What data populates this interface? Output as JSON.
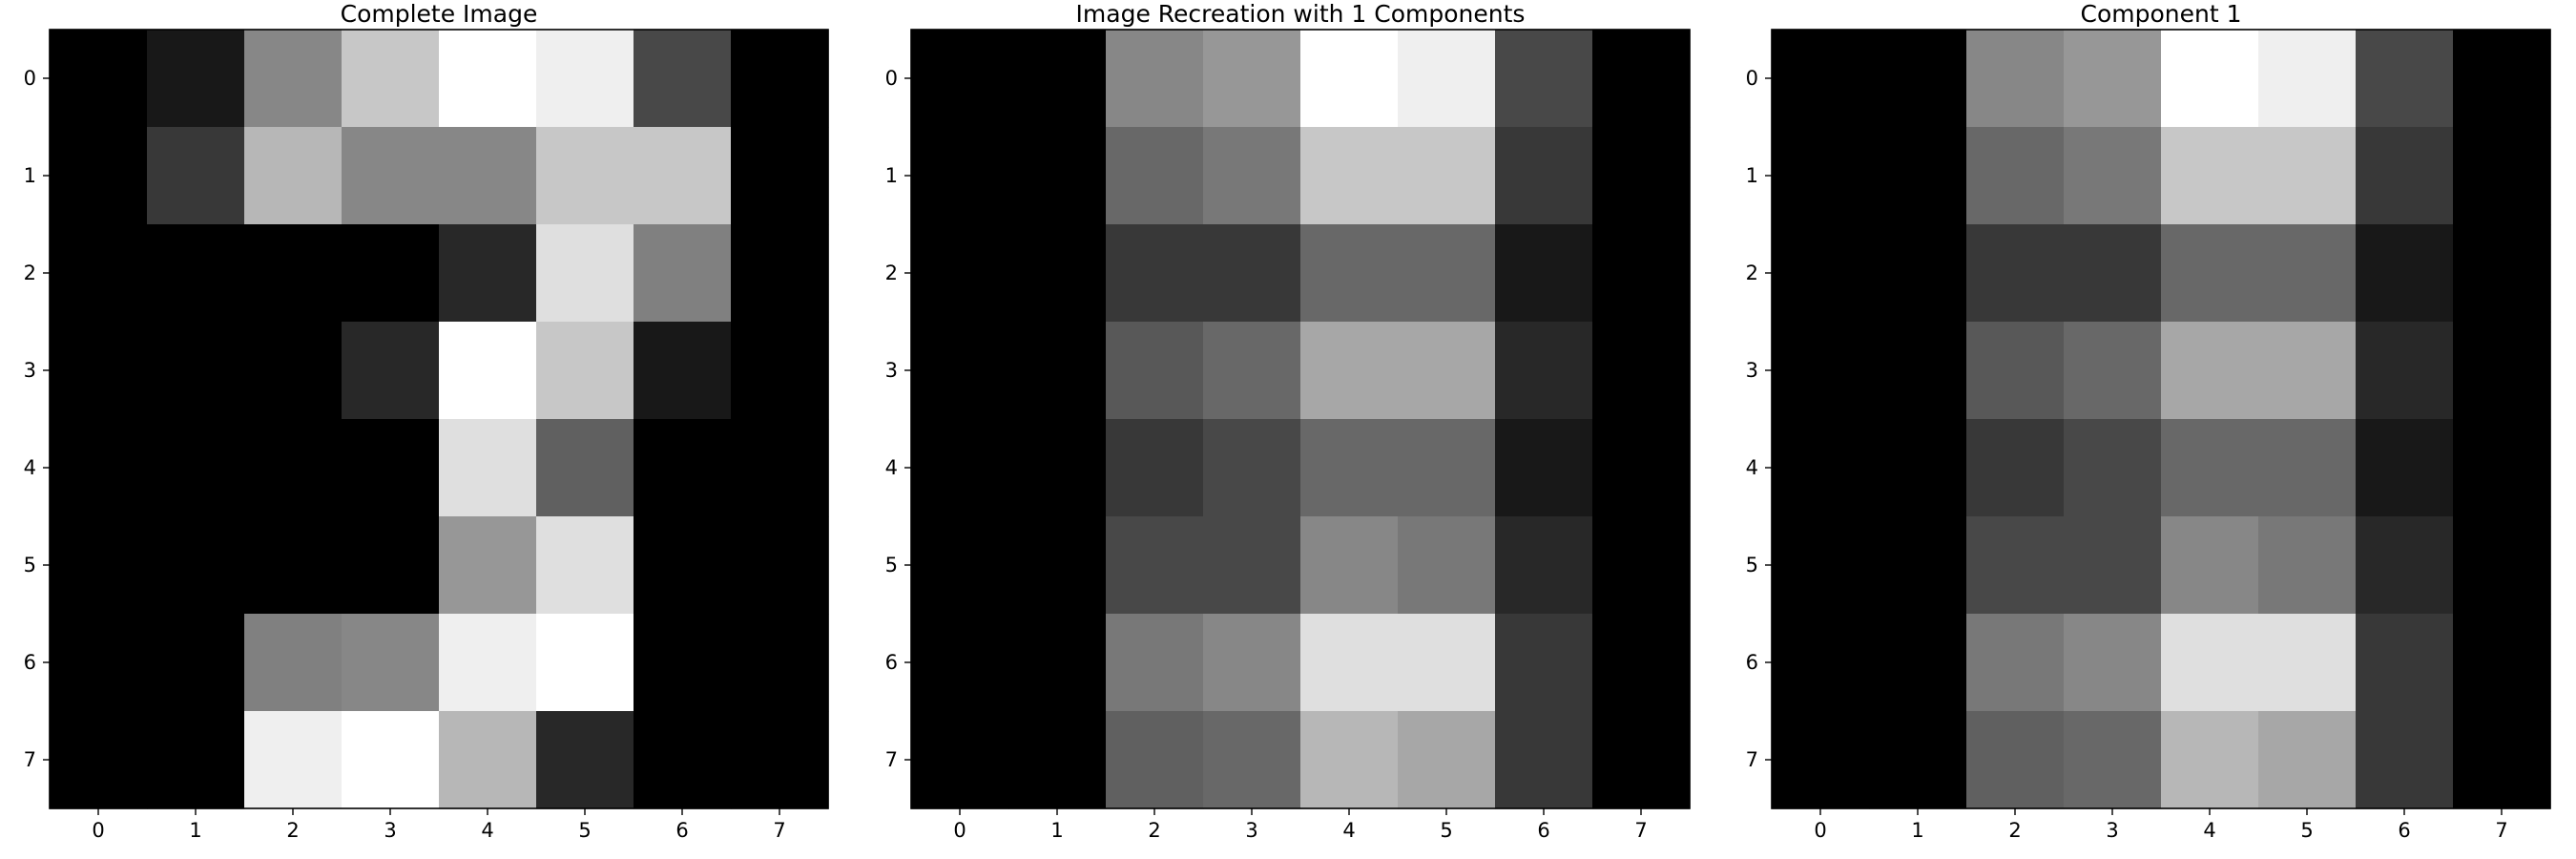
{
  "chart_data": [
    {
      "type": "heatmap",
      "title": "Complete Image",
      "colormap": "gray",
      "x_ticks": [
        "0",
        "1",
        "2",
        "3",
        "4",
        "5",
        "6",
        "7"
      ],
      "y_ticks": [
        "0",
        "1",
        "2",
        "3",
        "4",
        "5",
        "6",
        "7"
      ],
      "value_range": [
        0,
        16
      ],
      "grid": false,
      "values": [
        [
          0,
          1.5,
          8.5,
          12.5,
          16,
          15,
          4.5,
          0
        ],
        [
          0,
          3.5,
          11.5,
          8.5,
          8.5,
          12.5,
          12.5,
          0
        ],
        [
          0,
          0,
          0,
          0,
          2.5,
          14,
          8,
          0
        ],
        [
          0,
          0,
          0,
          2.5,
          16,
          12.5,
          1.5,
          0
        ],
        [
          0,
          0,
          0,
          0,
          14,
          6,
          0,
          0
        ],
        [
          0,
          0,
          0,
          0,
          9.5,
          14,
          0,
          0
        ],
        [
          0,
          0,
          8,
          8.5,
          15,
          16,
          0,
          0
        ],
        [
          0,
          0,
          15,
          16,
          11.5,
          2.5,
          0,
          0
        ]
      ]
    },
    {
      "type": "heatmap",
      "title": "Image Recreation with 1 Components",
      "colormap": "gray",
      "x_ticks": [
        "0",
        "1",
        "2",
        "3",
        "4",
        "5",
        "6",
        "7"
      ],
      "y_ticks": [
        "0",
        "1",
        "2",
        "3",
        "4",
        "5",
        "6",
        "7"
      ],
      "value_range": [
        0,
        16
      ],
      "grid": false,
      "values": [
        [
          0,
          0,
          8.5,
          9.5,
          16,
          15,
          4.5,
          0
        ],
        [
          0,
          0,
          6.5,
          7.5,
          12.5,
          12.5,
          3.5,
          0
        ],
        [
          0,
          0,
          3.5,
          3.5,
          6.5,
          6.5,
          1.5,
          0
        ],
        [
          0,
          0,
          5.5,
          6.5,
          10.5,
          10.5,
          2.5,
          0
        ],
        [
          0,
          0,
          3.5,
          4.5,
          6.5,
          6.5,
          1.5,
          0
        ],
        [
          0,
          0,
          4.5,
          4.5,
          8.5,
          7.5,
          2.5,
          0
        ],
        [
          0,
          0,
          7.5,
          8.5,
          14,
          14,
          3.5,
          0
        ],
        [
          0,
          0,
          6,
          6.5,
          11.5,
          10.5,
          3.5,
          0
        ]
      ]
    },
    {
      "type": "heatmap",
      "title": "Component 1",
      "colormap": "gray",
      "x_ticks": [
        "0",
        "1",
        "2",
        "3",
        "4",
        "5",
        "6",
        "7"
      ],
      "y_ticks": [
        "0",
        "1",
        "2",
        "3",
        "4",
        "5",
        "6",
        "7"
      ],
      "value_range": [
        0,
        16
      ],
      "grid": false,
      "values": [
        [
          0,
          0,
          8.5,
          9.5,
          16,
          15,
          4.5,
          0
        ],
        [
          0,
          0,
          6.5,
          7.5,
          12.5,
          12.5,
          3.5,
          0
        ],
        [
          0,
          0,
          3.5,
          3.5,
          6.5,
          6.5,
          1.5,
          0
        ],
        [
          0,
          0,
          5.5,
          6.5,
          10.5,
          10.5,
          2.5,
          0
        ],
        [
          0,
          0,
          3.5,
          4.5,
          6.5,
          6.5,
          1.5,
          0
        ],
        [
          0,
          0,
          4.5,
          4.5,
          8.5,
          7.5,
          2.5,
          0
        ],
        [
          0,
          0,
          7.5,
          8.5,
          14,
          14,
          3.5,
          0
        ],
        [
          0,
          0,
          6,
          6.5,
          11.5,
          10.5,
          3.5,
          0
        ]
      ]
    }
  ]
}
